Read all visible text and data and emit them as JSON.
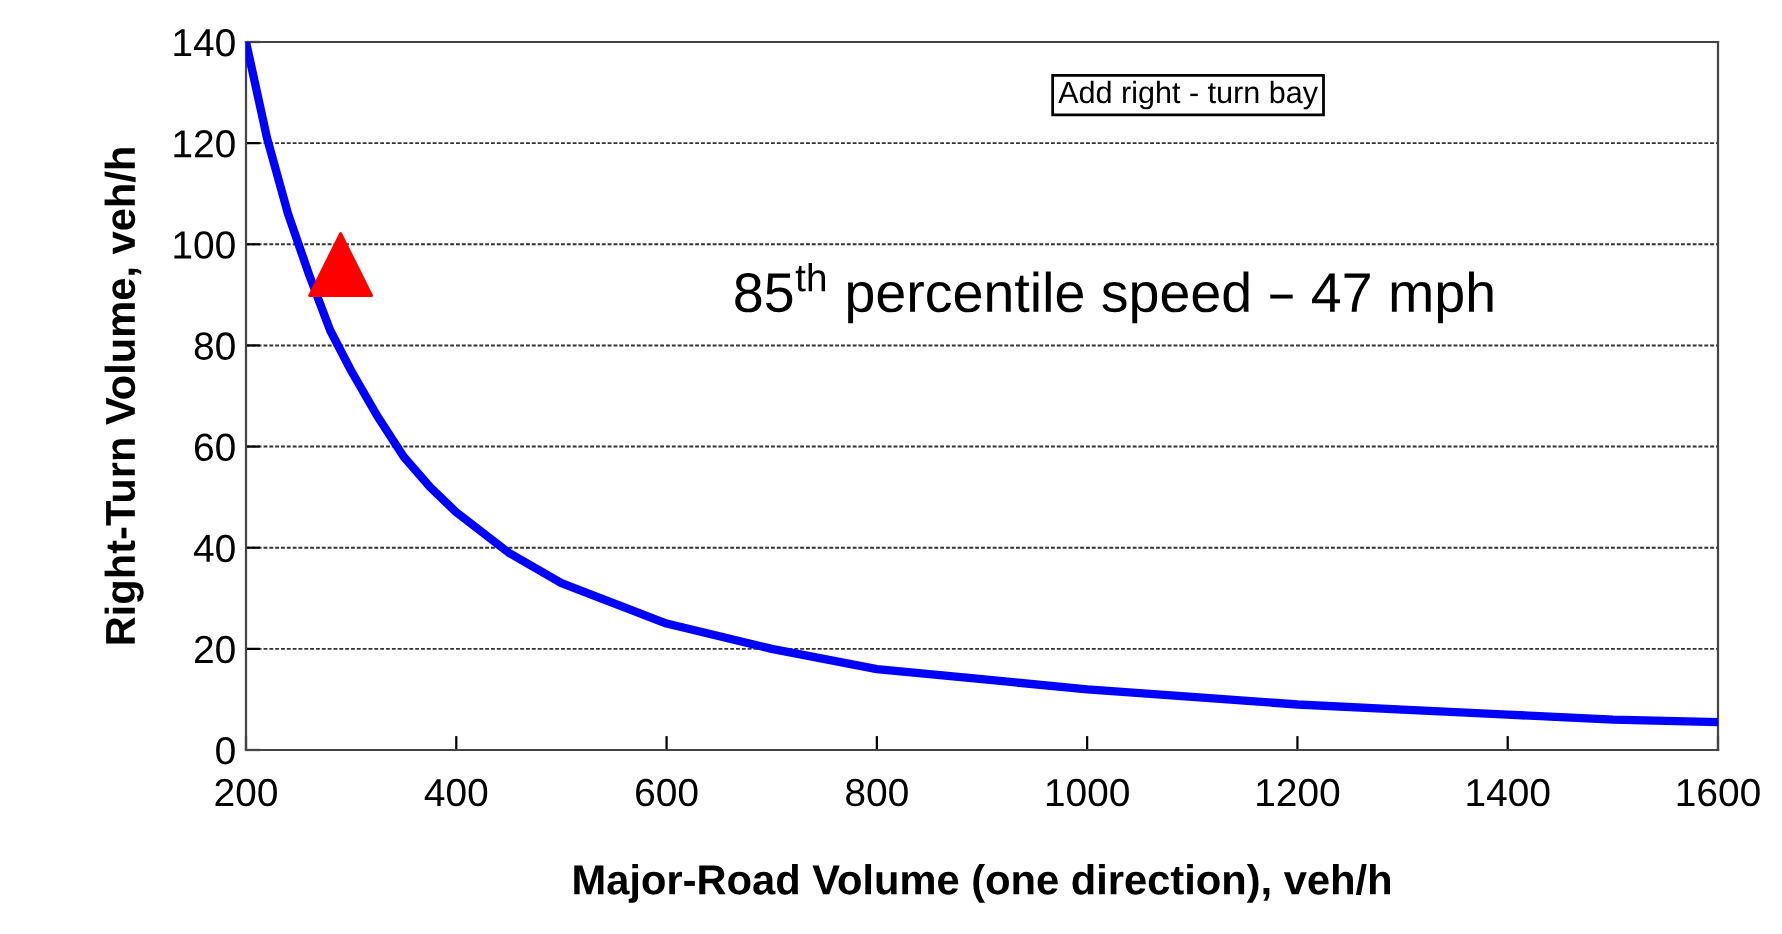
{
  "chart_data": {
    "type": "line",
    "xlabel": "Major-Road Volume (one direction), veh/h",
    "ylabel": "Right-Turn Volume, veh/h",
    "xlim": [
      200,
      1600
    ],
    "xticks": [
      200,
      400,
      600,
      800,
      1000,
      1200,
      1400,
      1600
    ],
    "ylim": [
      0,
      140
    ],
    "yticks": [
      0,
      20,
      40,
      60,
      80,
      100,
      120,
      140
    ],
    "grid": "y",
    "series": [
      {
        "color": "#0000ff",
        "marker": "none",
        "line_style": "solid",
        "x": [
          200,
          220,
          240,
          260,
          280,
          300,
          325,
          350,
          375,
          400,
          450,
          500,
          550,
          600,
          700,
          800,
          900,
          1000,
          1100,
          1200,
          1300,
          1400,
          1500,
          1600
        ],
        "values": [
          140,
          121,
          106,
          94,
          83,
          75,
          66,
          58,
          52,
          47,
          39,
          33,
          29,
          25,
          20,
          16,
          14,
          12,
          10.5,
          9,
          8,
          7,
          6,
          5.5
        ]
      },
      {
        "type": "scatter",
        "color": "#ff0000",
        "marker": "triangle",
        "x": [
          290
        ],
        "values": [
          96
        ]
      }
    ],
    "annotations": [
      "Add right - turn bay",
      "85$^{th}$ percentile speed – 47 mph"
    ]
  }
}
